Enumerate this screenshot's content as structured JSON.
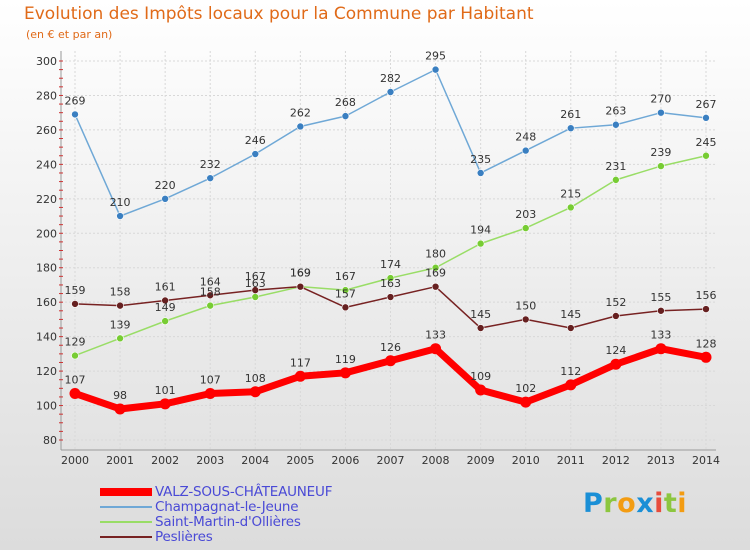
{
  "title": "Evolution des Impôts locaux pour la Commune par Habitant",
  "subtitle": "(en € et par an)",
  "colors": {
    "background_top": "#ffffff",
    "background_bottom": "#dcdcdc",
    "title": "#e06a18",
    "axis_text": "#333333",
    "grid": "#d8d8d8",
    "legend_text": "#4a4ad6"
  },
  "logo": {
    "letters": [
      {
        "char": "P",
        "color": "#1a8fd6"
      },
      {
        "char": "r",
        "color": "#8cc63f"
      },
      {
        "char": "o",
        "color": "#f39c12"
      },
      {
        "char": "x",
        "color": "#1a8fd6"
      },
      {
        "char": "i",
        "color": "#e74c3c"
      },
      {
        "char": "t",
        "color": "#8cc63f"
      },
      {
        "char": "i",
        "color": "#f39c12"
      }
    ]
  },
  "chart_data": {
    "type": "line",
    "title": "Evolution des Impôts locaux pour la Commune par Habitant",
    "subtitle": "(en € et par an)",
    "xlabel": "",
    "ylabel": "",
    "x": [
      2000,
      2001,
      2002,
      2003,
      2004,
      2005,
      2006,
      2007,
      2008,
      2009,
      2010,
      2011,
      2012,
      2013,
      2014
    ],
    "ylim": [
      80,
      300
    ],
    "yticks": [
      80,
      100,
      120,
      140,
      160,
      180,
      200,
      220,
      240,
      260,
      280,
      300
    ],
    "grid": true,
    "legend_position": "bottom-left",
    "series": [
      {
        "name": "VALZ-SOUS-CHÂTEAUNEUF",
        "color": "#ff0000",
        "marker_color": "#ff0000",
        "emphasis": true,
        "values": [
          107,
          98,
          101,
          107,
          108,
          117,
          119,
          126,
          133,
          109,
          102,
          112,
          124,
          133,
          128
        ]
      },
      {
        "name": "Champagnat-le-Jeune",
        "color": "#6fa8d6",
        "marker_color": "#3a7fc1",
        "emphasis": false,
        "values": [
          269,
          210,
          220,
          232,
          246,
          262,
          268,
          282,
          295,
          235,
          248,
          261,
          263,
          270,
          267
        ]
      },
      {
        "name": "Saint-Martin-d'Ollières",
        "color": "#99dd66",
        "marker_color": "#77cc33",
        "emphasis": false,
        "values": [
          129,
          139,
          149,
          158,
          163,
          169,
          167,
          174,
          180,
          194,
          203,
          215,
          231,
          239,
          245
        ]
      },
      {
        "name": "Peslières",
        "color": "#772222",
        "marker_color": "#662020",
        "emphasis": false,
        "values": [
          159,
          158,
          161,
          164,
          167,
          169,
          157,
          163,
          169,
          145,
          150,
          145,
          152,
          155,
          156
        ]
      }
    ]
  }
}
